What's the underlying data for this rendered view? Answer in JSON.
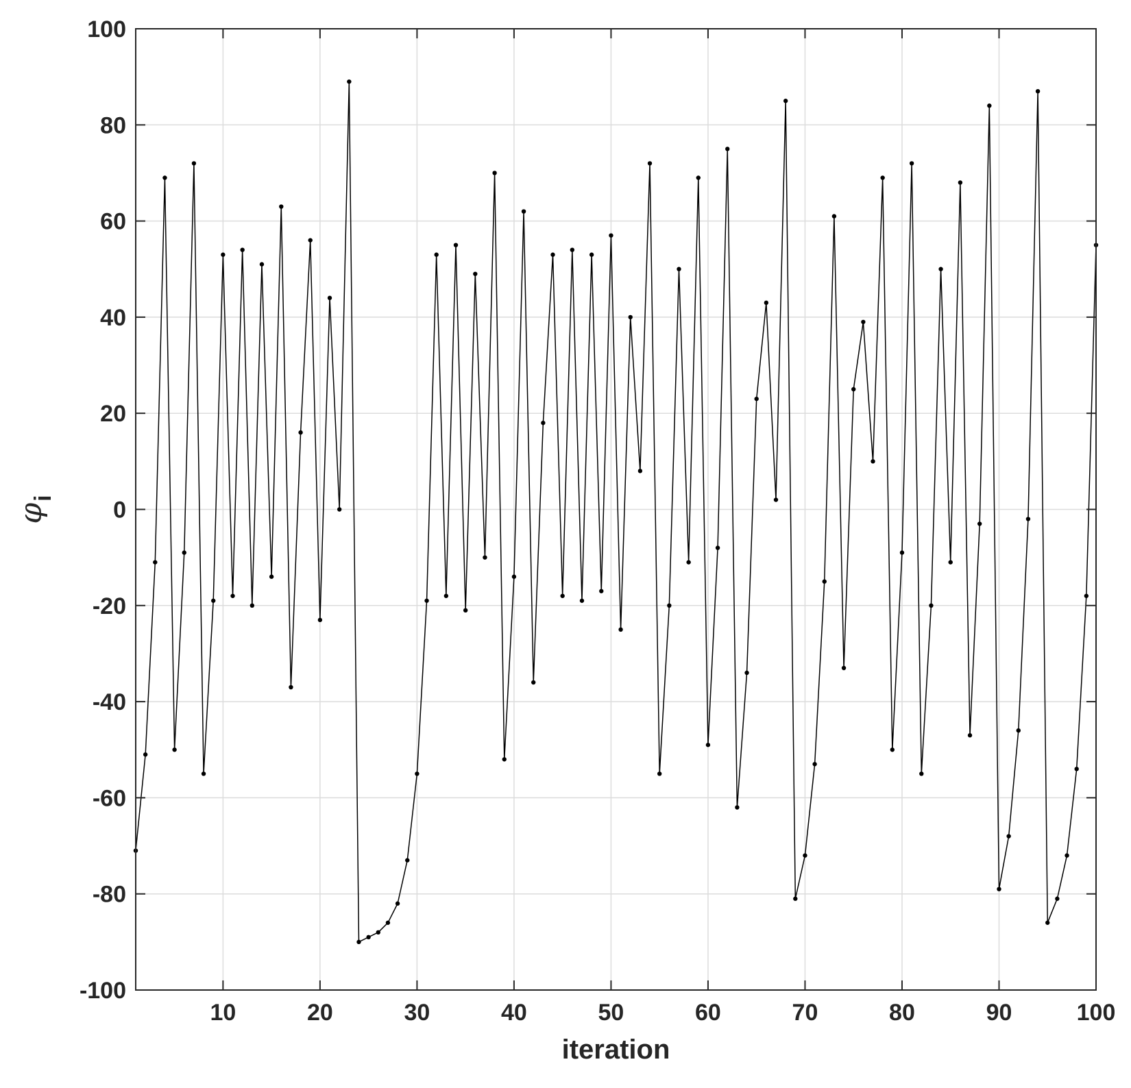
{
  "chart_data": {
    "type": "line",
    "title": "",
    "xlabel": "iteration",
    "ylabel": {
      "symbol": "φ",
      "subscript": "i"
    },
    "xlim": [
      1,
      100
    ],
    "ylim": [
      -100,
      100
    ],
    "xticks": [
      10,
      20,
      30,
      40,
      50,
      60,
      70,
      80,
      90,
      100
    ],
    "yticks": [
      -100,
      -80,
      -60,
      -40,
      -20,
      0,
      20,
      40,
      60,
      80,
      100
    ],
    "xtick_labels": [
      "10",
      "20",
      "30",
      "40",
      "50",
      "60",
      "70",
      "80",
      "90",
      "100"
    ],
    "ytick_labels": [
      "-100",
      "-80",
      "-60",
      "-40",
      "-20",
      "0",
      "20",
      "40",
      "60",
      "80",
      "100"
    ],
    "grid": true,
    "box": true,
    "line_color": "#000000",
    "marker": "dot",
    "series": [
      {
        "x": [
          1,
          2,
          3,
          4,
          5,
          6,
          7,
          8,
          9,
          10,
          11,
          12,
          13,
          14,
          15,
          16,
          17,
          18,
          19,
          20,
          21,
          22,
          23,
          24,
          25,
          26,
          27,
          28,
          29,
          30,
          31,
          32,
          33,
          34,
          35,
          36,
          37,
          38,
          39,
          40,
          41,
          42,
          43,
          44,
          45,
          46,
          47,
          48,
          49,
          50,
          51,
          52,
          53,
          54,
          55,
          56,
          57,
          58,
          59,
          60,
          61,
          62,
          63,
          64,
          65,
          66,
          67,
          68,
          69,
          70,
          71,
          72,
          73,
          74,
          75,
          76,
          77,
          78,
          79,
          80,
          81,
          82,
          83,
          84,
          85,
          86,
          87,
          88,
          89,
          90,
          91,
          92,
          93,
          94,
          95,
          96,
          97,
          98,
          99,
          100
        ],
        "values": [
          -71,
          -51,
          -11,
          69,
          -50,
          -9,
          72,
          -55,
          -19,
          53,
          -18,
          54,
          -20,
          51,
          -14,
          63,
          -37,
          16,
          56,
          -23,
          44,
          0,
          89,
          -90,
          -89,
          -88,
          -86,
          -82,
          -73,
          -55,
          -19,
          53,
          -18,
          55,
          -21,
          49,
          -10,
          70,
          -52,
          -14,
          62,
          -36,
          18,
          53,
          -18,
          54,
          -19,
          53,
          -17,
          57,
          -25,
          40,
          8,
          72,
          -55,
          -20,
          50,
          -11,
          69,
          -49,
          -8,
          75,
          -62,
          -34,
          23,
          43,
          2,
          85,
          -81,
          -72,
          -53,
          -15,
          61,
          -33,
          25,
          39,
          10,
          69,
          -50,
          -9,
          72,
          -55,
          -20,
          50,
          -11,
          68,
          -47,
          -3,
          84,
          -79,
          -68,
          -46,
          -2,
          87,
          -86,
          -81,
          -72,
          -54,
          -18,
          55
        ]
      }
    ]
  }
}
